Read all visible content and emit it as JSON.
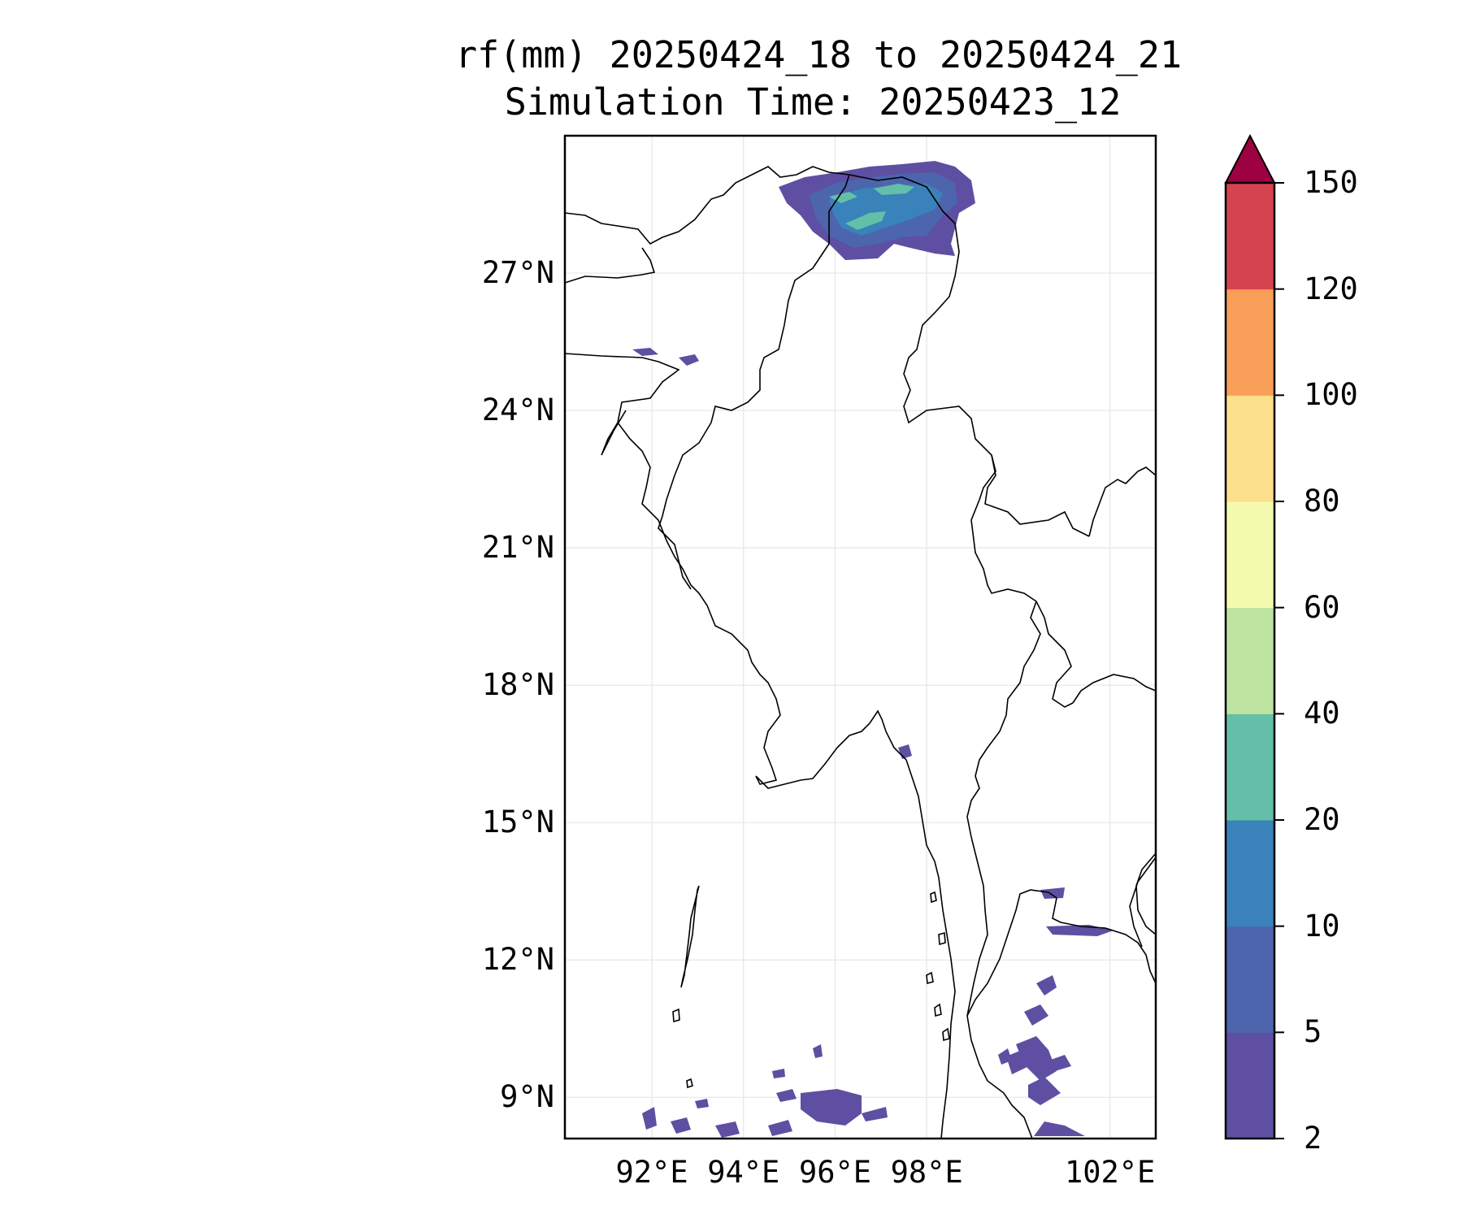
{
  "title": {
    "line1": "rf(mm) 20250424_18 to 20250424_21",
    "line2": "Simulation Time: 20250423_12"
  },
  "map": {
    "variable": "rf(mm)",
    "lat_labels": [
      "27°N",
      "24°N",
      "21°N",
      "18°N",
      "15°N",
      "12°N",
      "9°N"
    ],
    "lat_values": [
      27,
      24,
      21,
      18,
      15,
      12,
      9
    ],
    "lon_labels": [
      "92°E",
      "94°E",
      "96°E",
      "98°E",
      "102°E"
    ],
    "lon_values": [
      92,
      94,
      96,
      98,
      102
    ],
    "lon_range": [
      90.1,
      103.0
    ],
    "lat_range": [
      8.1,
      30.0
    ],
    "gridlines": true,
    "rain_regions": [
      {
        "name": "northern-myanmar-tibet",
        "min_mm": 2,
        "max_mm": 40
      },
      {
        "name": "andaman-sea-south",
        "min_mm": 2,
        "max_mm": 10
      },
      {
        "name": "gulf-of-thailand-west",
        "min_mm": 2,
        "max_mm": 10
      },
      {
        "name": "bangladesh-assam",
        "min_mm": 2,
        "max_mm": 5
      }
    ]
  },
  "colorbar": {
    "label_values": [
      "2",
      "5",
      "10",
      "20",
      "40",
      "60",
      "80",
      "100",
      "120",
      "150"
    ],
    "levels": [
      2,
      5,
      10,
      20,
      40,
      60,
      80,
      100,
      120,
      150
    ],
    "colors": [
      "#5e4fa2",
      "#4d65ad",
      "#3a82ba",
      "#64bfa8",
      "#bde4a1",
      "#f4fbaf",
      "#fde08c",
      "#f99e58",
      "#d64350"
    ],
    "extend_color": "#9e0142",
    "extend": "max"
  }
}
